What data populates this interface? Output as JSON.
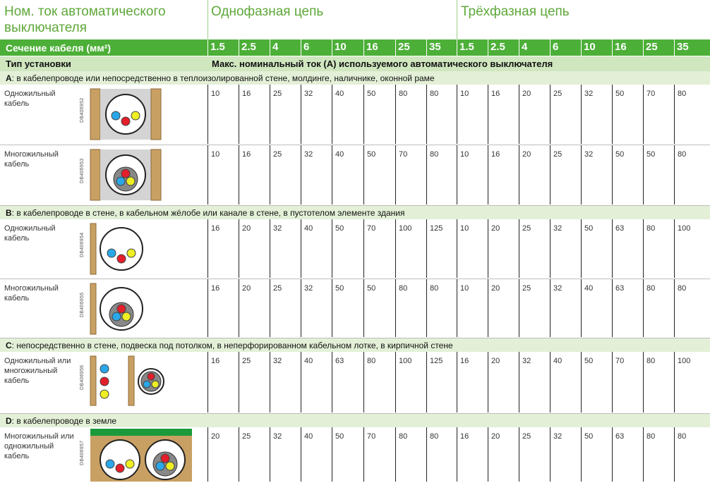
{
  "header": {
    "col_title": "Ном. ток автоматического выключателя",
    "single_phase": "Однофазная цепь",
    "three_phase": "Трёхфазная цепь",
    "cable_section": "Сечение кабеля (мм²)",
    "install_type": "Тип установки",
    "max_current": "Макс. номинальный ток (A) используемого автоматического выключателя"
  },
  "sizes": [
    "1.5",
    "2.5",
    "4",
    "6",
    "10",
    "16",
    "25",
    "35"
  ],
  "categories": [
    {
      "letter": "A",
      "text": ": в кабелепроводе или непосредственно в теплоизолированной стене, молдинге, наличнике, оконной раме",
      "rows": [
        {
          "label": "Одножильный кабель",
          "code": "DB406952",
          "single": [
            "10",
            "16",
            "25",
            "32",
            "40",
            "50",
            "80",
            "80"
          ],
          "three": [
            "10",
            "16",
            "20",
            "25",
            "32",
            "50",
            "70",
            "80"
          ]
        },
        {
          "label": "Многожильный кабель",
          "code": "DB406953",
          "single": [
            "10",
            "16",
            "25",
            "32",
            "40",
            "50",
            "70",
            "80"
          ],
          "three": [
            "10",
            "16",
            "20",
            "25",
            "32",
            "50",
            "50",
            "80"
          ]
        }
      ]
    },
    {
      "letter": "B",
      "text": ": в кабелепроводе в стене, в кабельном жёлобе или канале в стене, в пустотелом элементе здания",
      "rows": [
        {
          "label": "Одножильный кабель",
          "code": "DB406954",
          "single": [
            "16",
            "20",
            "32",
            "40",
            "50",
            "70",
            "100",
            "125"
          ],
          "three": [
            "10",
            "20",
            "25",
            "32",
            "50",
            "63",
            "80",
            "100"
          ]
        },
        {
          "label": "Многожильный кабель",
          "code": "DB406955",
          "single": [
            "16",
            "20",
            "25",
            "32",
            "50",
            "50",
            "80",
            "80"
          ],
          "three": [
            "10",
            "20",
            "25",
            "32",
            "40",
            "63",
            "80",
            "80"
          ]
        }
      ]
    },
    {
      "letter": "C",
      "text": ": непосредственно в стене, подвеска под потолком, в неперфорированном кабельном лотке, в кирпичной стене",
      "rows": [
        {
          "label": "Одножильный или многожильный кабель",
          "code": "DB406956",
          "single": [
            "16",
            "25",
            "32",
            "40",
            "63",
            "80",
            "100",
            "125"
          ],
          "three": [
            "16",
            "20",
            "32",
            "40",
            "50",
            "70",
            "80",
            "100"
          ]
        }
      ]
    },
    {
      "letter": "D",
      "text": ": в кабелепроводе в земле",
      "rows": [
        {
          "label": "Многожильный или одножильный кабель",
          "code": "DB406957",
          "single": [
            "20",
            "25",
            "32",
            "40",
            "50",
            "70",
            "80",
            "80"
          ],
          "three": [
            "16",
            "20",
            "25",
            "32",
            "50",
            "63",
            "80",
            "80"
          ]
        }
      ]
    }
  ],
  "colors": {
    "green": "#4caf37",
    "title_green": "#5fa83a",
    "light_green": "#cfe6bf",
    "cat_green": "#e3f0d7",
    "wood": "#c9a063",
    "wall_grey": "#d4d4d4"
  }
}
